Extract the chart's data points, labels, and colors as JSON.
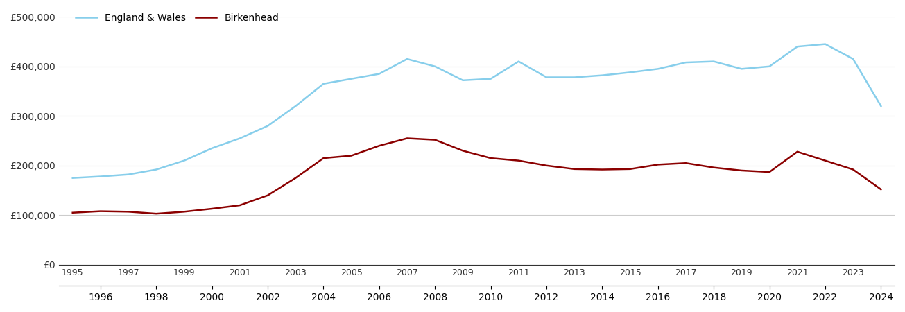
{
  "birkenhead_years": [
    1995,
    1996,
    1997,
    1998,
    1999,
    2000,
    2001,
    2002,
    2003,
    2004,
    2005,
    2006,
    2007,
    2008,
    2009,
    2010,
    2011,
    2012,
    2013,
    2014,
    2015,
    2016,
    2017,
    2018,
    2019,
    2020,
    2021,
    2022,
    2023,
    2024
  ],
  "birkenhead_values": [
    105000,
    108000,
    107000,
    103000,
    107000,
    113000,
    120000,
    140000,
    175000,
    215000,
    220000,
    240000,
    255000,
    252000,
    230000,
    215000,
    210000,
    200000,
    193000,
    192000,
    193000,
    202000,
    205000,
    196000,
    190000,
    187000,
    228000,
    210000,
    192000,
    152000
  ],
  "england_years": [
    1995,
    1996,
    1997,
    1998,
    1999,
    2000,
    2001,
    2002,
    2003,
    2004,
    2005,
    2006,
    2007,
    2008,
    2009,
    2010,
    2011,
    2012,
    2013,
    2014,
    2015,
    2016,
    2017,
    2018,
    2019,
    2020,
    2021,
    2022,
    2023,
    2024
  ],
  "england_values": [
    175000,
    178000,
    182000,
    192000,
    210000,
    235000,
    255000,
    280000,
    320000,
    365000,
    375000,
    385000,
    415000,
    400000,
    372000,
    375000,
    410000,
    378000,
    378000,
    382000,
    388000,
    395000,
    408000,
    410000,
    395000,
    400000,
    440000,
    445000,
    415000,
    320000
  ],
  "birkenhead_color": "#8B0000",
  "england_color": "#87CEEB",
  "birkenhead_label": "Birkenhead",
  "england_label": "England & Wales",
  "ylim": [
    0,
    500000
  ],
  "yticks": [
    0,
    100000,
    200000,
    300000,
    400000,
    500000
  ],
  "ytick_labels": [
    "£0",
    "£100,000",
    "£200,000",
    "£300,000",
    "£400,000",
    "£500,000"
  ],
  "line_width": 1.8,
  "bg_color": "#ffffff",
  "grid_color": "#cccccc",
  "legend_loc": "upper left"
}
